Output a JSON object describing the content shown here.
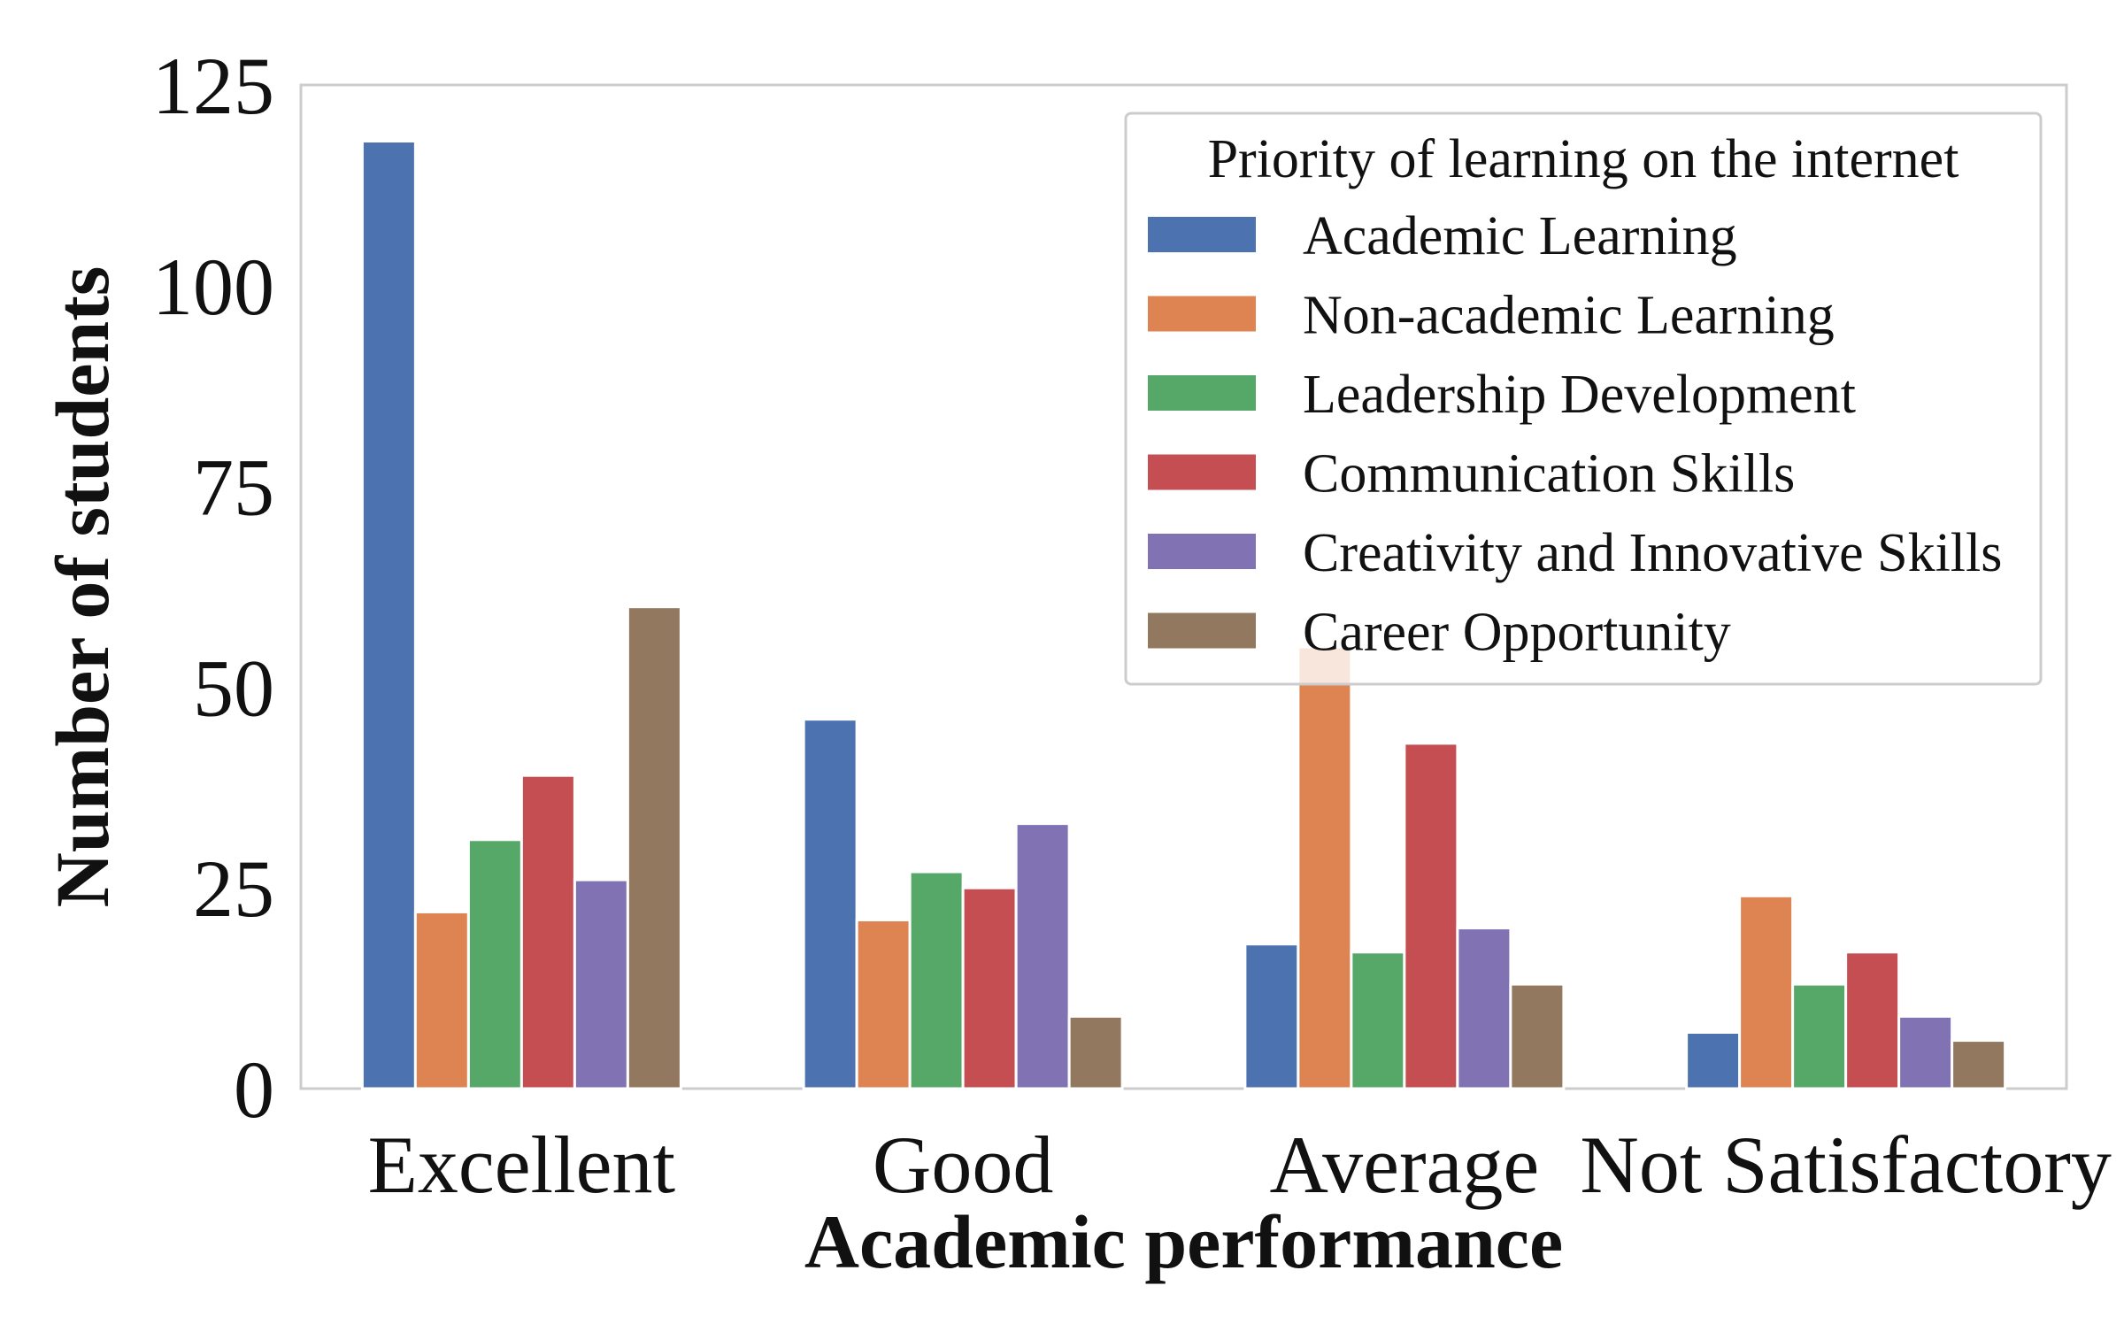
{
  "chart_data": {
    "type": "bar",
    "title": "",
    "xlabel": "Academic performance",
    "ylabel": "Number of students",
    "categories": [
      "Excellent",
      "Good",
      "Average",
      "Not Satisfactory"
    ],
    "ylim": [
      0,
      125
    ],
    "yticks": [
      0,
      25,
      50,
      75,
      100,
      125
    ],
    "grid": false,
    "legend": {
      "title": "Priority of learning on the internet",
      "placement": "top-right"
    },
    "series": [
      {
        "name": "Academic Learning",
        "color": "#4c72b0",
        "values": [
          118,
          46,
          18,
          7
        ]
      },
      {
        "name": "Non-academic Learning",
        "color": "#dd8452",
        "values": [
          22,
          21,
          55,
          24
        ]
      },
      {
        "name": "Leadership Development",
        "color": "#55a868",
        "values": [
          31,
          27,
          17,
          13
        ]
      },
      {
        "name": "Communication Skills",
        "color": "#c44e52",
        "values": [
          39,
          25,
          43,
          17
        ]
      },
      {
        "name": "Creativity and Innovative Skills",
        "color": "#8172b3",
        "values": [
          26,
          33,
          20,
          9
        ]
      },
      {
        "name": "Career Opportunity",
        "color": "#937860",
        "values": [
          60,
          9,
          13,
          6
        ]
      }
    ]
  }
}
